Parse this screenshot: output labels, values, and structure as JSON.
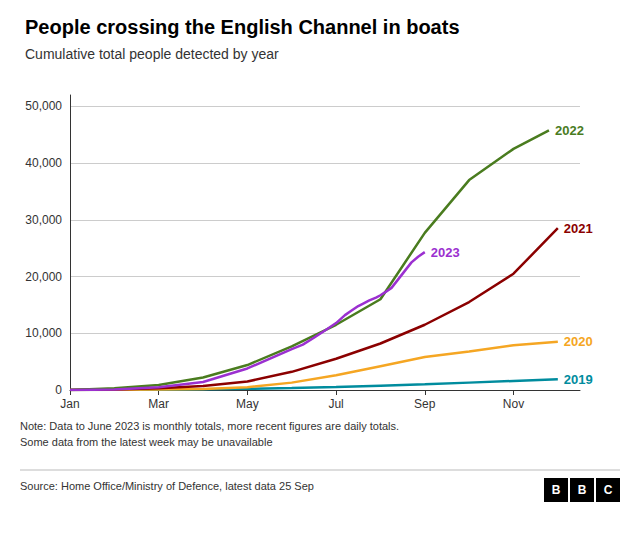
{
  "chart_data": {
    "type": "line",
    "title": "People crossing the English Channel in boats",
    "subtitle": "Cumulative total people detected by year",
    "note": "Note: Data to June 2023 is monthly totals, more recent figures are daily totals.\nSome data from the latest week may be unavailable",
    "source": "Source: Home Office/Ministry of Defence, latest data 25 Sep",
    "logo": "BBC",
    "xlim": [
      1,
      12.5
    ],
    "xticks": [
      {
        "value": 1,
        "label": "Jan"
      },
      {
        "value": 3,
        "label": "Mar"
      },
      {
        "value": 5,
        "label": "May"
      },
      {
        "value": 7,
        "label": "Jul"
      },
      {
        "value": 9,
        "label": "Sep"
      },
      {
        "value": 11,
        "label": "Nov"
      }
    ],
    "ylim": [
      0,
      52000
    ],
    "yticks": [
      0,
      {
        "value": 10000,
        "label": "10,000"
      },
      {
        "value": 20000,
        "label": "20,000"
      },
      {
        "value": 30000,
        "label": "30,000"
      },
      {
        "value": 40000,
        "label": "40,000"
      },
      {
        "value": 50000,
        "label": "50,000"
      }
    ],
    "grid": true,
    "series": [
      {
        "name": "2019",
        "color": "#008c9e",
        "x": [
          1,
          2,
          3,
          4,
          5,
          6,
          7,
          8,
          9,
          10,
          11,
          12
        ],
        "values": [
          0,
          30,
          60,
          130,
          200,
          350,
          520,
          750,
          1000,
          1300,
          1600,
          1900
        ]
      },
      {
        "name": "2020",
        "color": "#f5a623",
        "x": [
          1,
          2,
          3,
          4,
          5,
          6,
          7,
          8,
          9,
          10,
          11,
          12
        ],
        "values": [
          0,
          30,
          80,
          180,
          500,
          1300,
          2600,
          4200,
          5800,
          6800,
          7900,
          8500
        ]
      },
      {
        "name": "2021",
        "color": "#8b0000",
        "x": [
          1,
          2,
          3,
          4,
          5,
          6,
          7,
          8,
          9,
          10,
          11,
          12
        ],
        "values": [
          0,
          100,
          300,
          700,
          1500,
          3200,
          5500,
          8200,
          11500,
          15500,
          20500,
          28526
        ]
      },
      {
        "name": "2022",
        "color": "#4a7c1f",
        "x": [
          1,
          2,
          3,
          4,
          5,
          6,
          7,
          8,
          9,
          10,
          11,
          11.8
        ],
        "values": [
          0,
          300,
          900,
          2200,
          4400,
          7700,
          11500,
          16000,
          27700,
          37000,
          42500,
          45755
        ]
      },
      {
        "name": "2023",
        "color": "#9b30d0",
        "x": [
          1,
          2,
          3,
          4,
          5,
          6,
          6.25,
          6.5,
          6.75,
          7.0,
          7.1,
          7.2,
          7.35,
          7.5,
          7.6,
          7.75,
          7.9,
          8.0,
          8.1,
          8.25,
          8.4,
          8.55,
          8.7,
          8.85,
          9.0
        ],
        "values": [
          0,
          100,
          500,
          1400,
          3800,
          7200,
          8000,
          9200,
          10500,
          11800,
          12500,
          13200,
          14000,
          14800,
          15200,
          15800,
          16300,
          16700,
          17200,
          18000,
          19500,
          21000,
          22500,
          23500,
          24300
        ]
      }
    ]
  }
}
